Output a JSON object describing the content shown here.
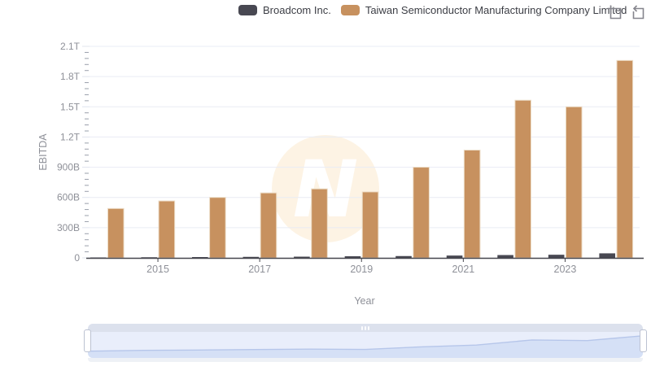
{
  "legend": {
    "items": [
      {
        "label": "Broadcom Inc.",
        "color": "#484852"
      },
      {
        "label": "Taiwan Semiconductor Manufacturing Company Limited",
        "color": "#c7915f"
      }
    ]
  },
  "toolbar": {
    "zoom_icon": "zoom-selection-icon",
    "reset_icon": "reset-zoom-icon"
  },
  "chart_data": {
    "type": "bar",
    "title": "",
    "xlabel": "Year",
    "ylabel": "EBITDA",
    "unit": "billions",
    "categories": [
      2014,
      2015,
      2016,
      2017,
      2018,
      2019,
      2020,
      2021,
      2022,
      2023,
      2024
    ],
    "series": [
      {
        "name": "Broadcom Inc.",
        "color": "#484852",
        "values": [
          4,
          6,
          8,
          10,
          12,
          16,
          18,
          23,
          28,
          31,
          45
        ]
      },
      {
        "name": "Taiwan Semiconductor Manufacturing Company Limited",
        "color": "#c7915f",
        "values": [
          490,
          565,
          600,
          645,
          685,
          655,
          900,
          1070,
          1565,
          1500,
          1960
        ]
      }
    ],
    "ylim": [
      0,
      2100
    ],
    "yticks": [
      {
        "v": 0,
        "label": "0"
      },
      {
        "v": 300,
        "label": "300B"
      },
      {
        "v": 600,
        "label": "600B"
      },
      {
        "v": 900,
        "label": "900B"
      },
      {
        "v": 1200,
        "label": "1.2T"
      },
      {
        "v": 1500,
        "label": "1.5T"
      },
      {
        "v": 1800,
        "label": "1.8T"
      },
      {
        "v": 2100,
        "label": "2.1T"
      }
    ],
    "xticks": [
      2015,
      2017,
      2019,
      2021,
      2023
    ],
    "grid": true,
    "legend_position": "top",
    "colors": {
      "gridline": "#e9ecf4",
      "axis_line": "#45454d",
      "tick_label": "#8e9098",
      "watermark": "#fdf3e4"
    }
  },
  "navigator": {
    "type": "range-selector",
    "selection": "full-range"
  }
}
